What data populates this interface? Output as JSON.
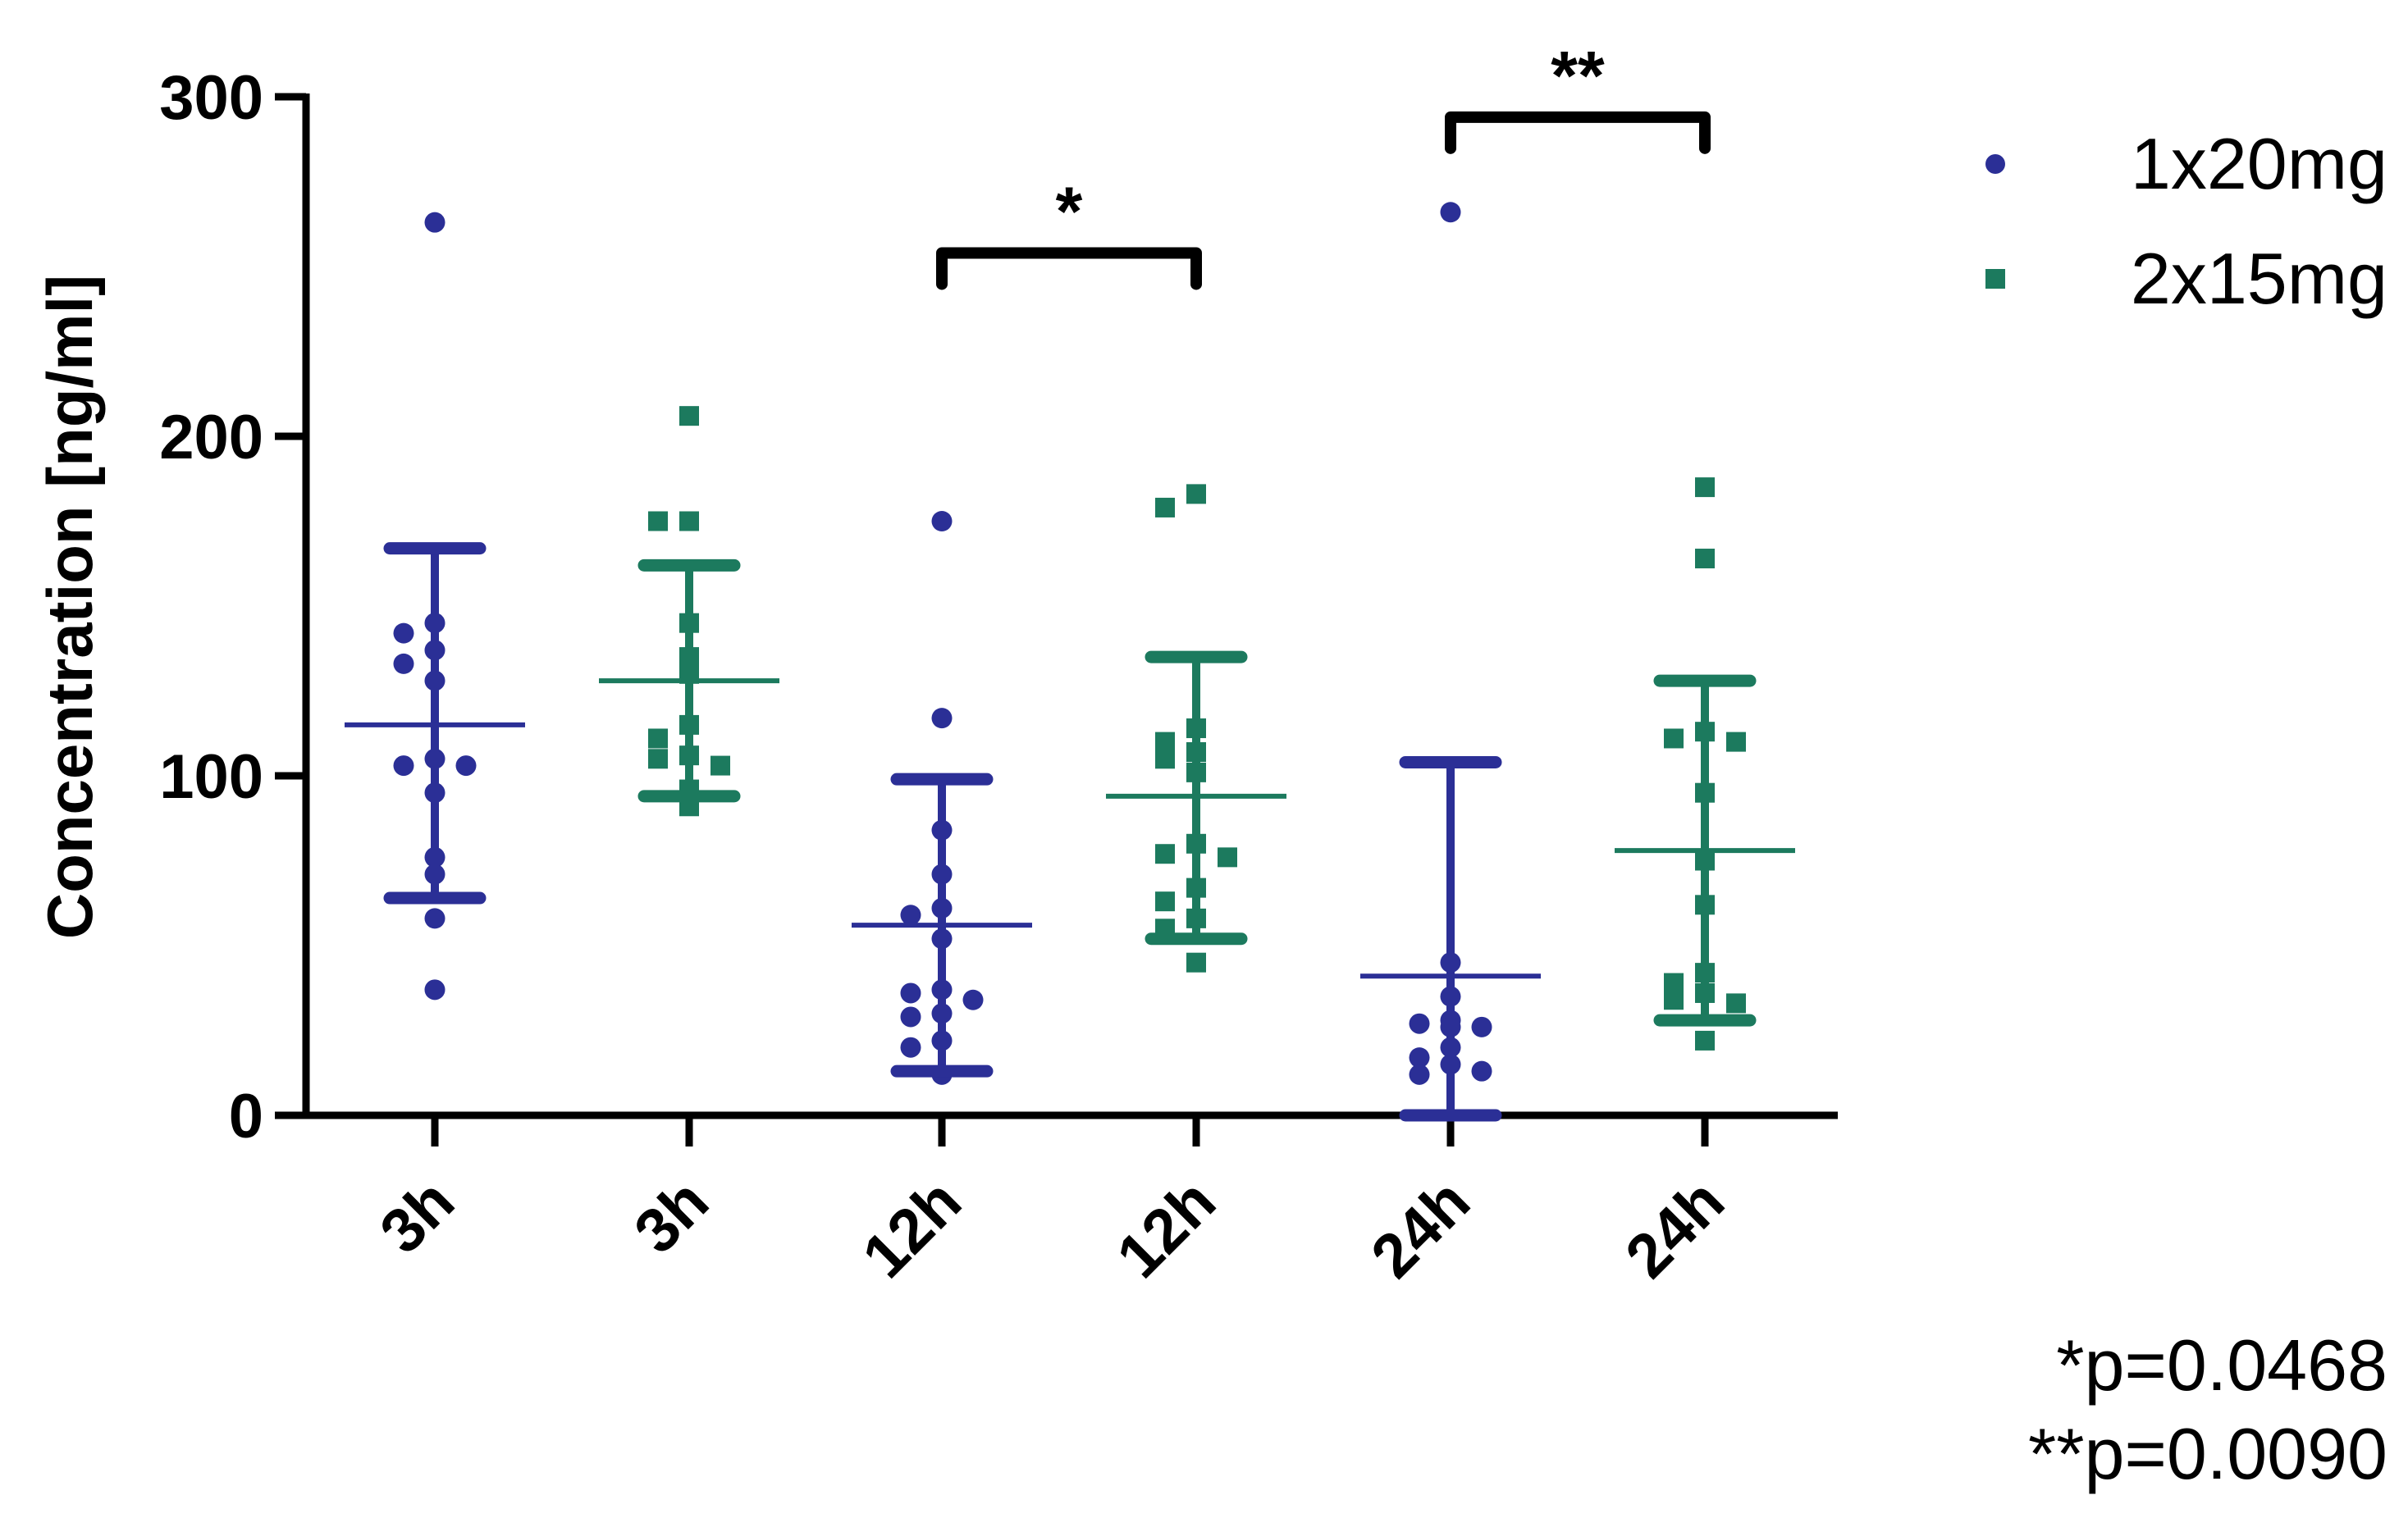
{
  "colors": {
    "series_1": "#2b2f96",
    "series_2": "#1c7a5e",
    "axis": "#000000"
  },
  "chart_data": {
    "type": "scatter",
    "title": "",
    "ylabel": "Concentration [ng/ml]",
    "xlabel": "",
    "ylim": [
      0,
      300
    ],
    "y_ticks": [
      "0",
      "100",
      "200",
      "300"
    ],
    "categories": [
      "3h",
      "3h",
      "12h",
      "12h",
      "24h",
      "24h"
    ],
    "legend_position": "top-right",
    "series": [
      {
        "name": "1x20mg",
        "marker": "circle",
        "groups": [
          {
            "category_index": 0,
            "mean": 115,
            "error_low": 64,
            "error_high": 167,
            "points": [
              263,
              145,
              142,
              137,
              133,
              128,
              105,
              103,
              103,
              95,
              76,
              71,
              58,
              37
            ]
          },
          {
            "category_index": 2,
            "mean": 56,
            "error_low": 13,
            "error_high": 99,
            "points": [
              175,
              117,
              84,
              71,
              61,
              59,
              52,
              37,
              36,
              34,
              30,
              29,
              22,
              20,
              12
            ]
          },
          {
            "category_index": 4,
            "mean": 41,
            "error_low": 0,
            "error_high": 104,
            "points": [
              266,
              45,
              35,
              28,
              27,
              26,
              26,
              20,
              17,
              15,
              13,
              12
            ]
          }
        ]
      },
      {
        "name": "2x15mg",
        "marker": "square",
        "groups": [
          {
            "category_index": 1,
            "mean": 128,
            "error_low": 94,
            "error_high": 162,
            "points": [
              206,
              175,
              175,
              145,
              135,
              130,
              115,
              111,
              106,
              105,
              103,
              96,
              91
            ]
          },
          {
            "category_index": 3,
            "mean": 94,
            "error_low": 52,
            "error_high": 135,
            "points": [
              183,
              179,
              114,
              110,
              107,
              105,
              101,
              80,
              77,
              76,
              67,
              63,
              58,
              55,
              45
            ]
          },
          {
            "category_index": 5,
            "mean": 78,
            "error_low": 28,
            "error_high": 128,
            "points": [
              185,
              164,
              113,
              111,
              110,
              95,
              75,
              62,
              42,
              39,
              36,
              34,
              33,
              22
            ]
          }
        ]
      }
    ],
    "significance": [
      {
        "label": "*",
        "from_category": 2,
        "to_category": 3,
        "y": 254
      },
      {
        "label": "**",
        "from_category": 4,
        "to_category": 5,
        "y": 294
      }
    ],
    "notes": [
      "*p=0.0468",
      "**p=0.0090"
    ]
  }
}
